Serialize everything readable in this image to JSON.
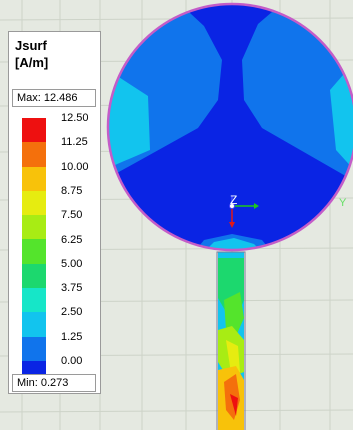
{
  "legend": {
    "title_line1": "Jsurf",
    "title_line2": "[A/m]",
    "max_label": "Max: 12.486",
    "min_label": "Min:  0.273",
    "ticks": [
      "12.50",
      "11.25",
      "10.00",
      "8.75",
      "7.50",
      "6.25",
      "5.00",
      "3.75",
      "2.50",
      "1.25",
      "0.00"
    ],
    "colors": [
      "#ee1010",
      "#f4700c",
      "#f8c20a",
      "#e6ec10",
      "#a8ec14",
      "#54e42c",
      "#1cd86e",
      "#16e6c8",
      "#12c4ee",
      "#1074ec",
      "#0a24e4"
    ]
  },
  "axes": {
    "z_label": "Z",
    "y_label": "Y"
  },
  "field_colors": {
    "dark_blue": "#0a24e4",
    "mid_blue": "#1074ec",
    "light_blue": "#12c4ee",
    "cyan": "#16e6c8",
    "outline": "#c45cc8"
  }
}
